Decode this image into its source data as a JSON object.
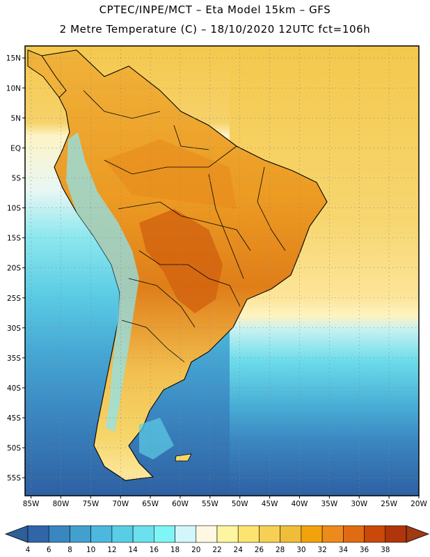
{
  "header": {
    "line1": "CPTEC/INPE/MCT –  Eta Model 15km – GFS",
    "line2": "2 Metre Temperature (C) – 18/10/2020 12UTC fct=106h"
  },
  "map": {
    "region": "South America",
    "lat_labels": [
      "15N",
      "10N",
      "5N",
      "EQ",
      "5S",
      "10S",
      "15S",
      "20S",
      "25S",
      "30S",
      "35S",
      "40S",
      "45S",
      "50S",
      "55S"
    ],
    "lon_labels": [
      "85W",
      "80W",
      "75W",
      "70W",
      "65W",
      "60W",
      "55W",
      "50W",
      "45W",
      "40W",
      "35W",
      "30W",
      "25W",
      "20W"
    ],
    "lat_range": [
      -58,
      17
    ],
    "lon_range": [
      -86,
      -20
    ]
  },
  "colorbar": {
    "labels": [
      "4",
      "6",
      "8",
      "10",
      "12",
      "14",
      "16",
      "18",
      "20",
      "22",
      "24",
      "26",
      "28",
      "30",
      "32",
      "34",
      "36",
      "38"
    ],
    "colors": [
      "#3066a8",
      "#3a86c1",
      "#42a0cf",
      "#4db8dd",
      "#5acde6",
      "#6ce0ee",
      "#7ff5f5",
      "#d2f6fa",
      "#fef8e2",
      "#fef5a0",
      "#fde470",
      "#f6d054",
      "#f0bd3a",
      "#f2a20c",
      "#ec8a1c",
      "#e06b12",
      "#c9480a",
      "#b0350a"
    ],
    "low_color": "#2e5f99",
    "high_color": "#a03a10"
  }
}
